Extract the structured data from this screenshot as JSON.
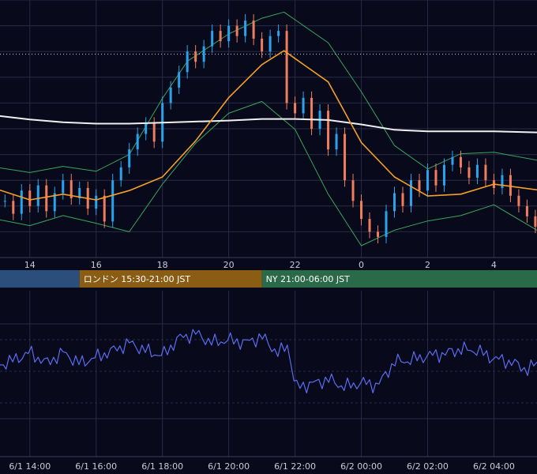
{
  "chart_data": [
    {
      "type": "candlestick",
      "series": [
        {
          "name": "candles",
          "color_up": "#2aa3ee",
          "color_down": "#f07e5e"
        },
        {
          "name": "long-ma",
          "color": "#f0f0f0"
        },
        {
          "name": "short-ma",
          "color": "#f5a02a"
        },
        {
          "name": "bollinger-bands",
          "color": "#3aa65a"
        }
      ],
      "x_ticks": [
        "14",
        "16",
        "18",
        "20",
        "22",
        "0",
        "2",
        "4"
      ],
      "x_range": [
        "6/1 13:06",
        "6/2 05:18"
      ],
      "ylim": [
        0,
        100
      ],
      "current_level": 67.6,
      "guide": {
        "price": 79,
        "time_start": "6/1 13:06",
        "time_end": "6/2 05:18"
      },
      "long_ma": [
        {
          "t": "6/1 13:00",
          "v": 55.1
        },
        {
          "t": "6/1 14:00",
          "v": 53.6
        },
        {
          "t": "6/1 15:00",
          "v": 52.5
        },
        {
          "t": "6/1 16:00",
          "v": 52.0
        },
        {
          "t": "6/1 17:00",
          "v": 52.0
        },
        {
          "t": "6/1 18:00",
          "v": 52.4
        },
        {
          "t": "6/1 19:00",
          "v": 52.8
        },
        {
          "t": "6/1 20:00",
          "v": 53.2
        },
        {
          "t": "6/1 21:00",
          "v": 53.8
        },
        {
          "t": "6/1 22:00",
          "v": 53.8
        },
        {
          "t": "6/1 23:00",
          "v": 53.4
        },
        {
          "t": "6/2 00:00",
          "v": 51.7
        },
        {
          "t": "6/2 01:00",
          "v": 49.6
        },
        {
          "t": "6/2 02:00",
          "v": 49.0
        },
        {
          "t": "6/2 03:00",
          "v": 49.0
        },
        {
          "t": "6/2 04:00",
          "v": 49.0
        },
        {
          "t": "6/2 05:18",
          "v": 48.6
        }
      ],
      "short_ma": [
        {
          "t": "6/1 13:00",
          "v": 26.6
        },
        {
          "t": "6/1 14:00",
          "v": 22.4
        },
        {
          "t": "6/1 15:00",
          "v": 24.6
        },
        {
          "t": "6/1 16:00",
          "v": 22.4
        },
        {
          "t": "6/1 17:00",
          "v": 26.0
        },
        {
          "t": "6/1 18:00",
          "v": 31.3
        },
        {
          "t": "6/1 19:00",
          "v": 45.3
        },
        {
          "t": "6/1 20:00",
          "v": 62.1
        },
        {
          "t": "6/1 21:00",
          "v": 74.9
        },
        {
          "t": "6/1 21:40",
          "v": 80.3
        },
        {
          "t": "6/1 23:00",
          "v": 68.2
        },
        {
          "t": "6/2 00:00",
          "v": 44.7
        },
        {
          "t": "6/2 01:00",
          "v": 31.3
        },
        {
          "t": "6/2 02:00",
          "v": 23.9
        },
        {
          "t": "6/2 03:00",
          "v": 24.6
        },
        {
          "t": "6/2 04:00",
          "v": 28.5
        },
        {
          "t": "6/2 05:18",
          "v": 26.3
        }
      ],
      "bollinger_upper": [
        {
          "t": "6/1 13:00",
          "v": 35.0
        },
        {
          "t": "6/1 14:00",
          "v": 33.0
        },
        {
          "t": "6/1 15:00",
          "v": 35.4
        },
        {
          "t": "6/1 16:00",
          "v": 33.5
        },
        {
          "t": "6/1 17:00",
          "v": 40.0
        },
        {
          "t": "6/1 18:00",
          "v": 61.8
        },
        {
          "t": "6/1 18:45",
          "v": 76.2
        },
        {
          "t": "6/1 20:00",
          "v": 86.8
        },
        {
          "t": "6/1 21:00",
          "v": 92.9
        },
        {
          "t": "6/1 21:40",
          "v": 95.3
        },
        {
          "t": "6/1 23:00",
          "v": 83.4
        },
        {
          "t": "6/2 00:00",
          "v": 64.4
        },
        {
          "t": "6/2 01:00",
          "v": 43.5
        },
        {
          "t": "6/2 02:00",
          "v": 34.4
        },
        {
          "t": "6/2 03:00",
          "v": 40.3
        },
        {
          "t": "6/2 04:00",
          "v": 40.9
        },
        {
          "t": "6/2 05:18",
          "v": 37.8
        }
      ],
      "bollinger_lower": [
        {
          "t": "6/1 13:00",
          "v": 14.9
        },
        {
          "t": "6/1 14:00",
          "v": 12.4
        },
        {
          "t": "6/1 15:00",
          "v": 16.3
        },
        {
          "t": "6/1 16:00",
          "v": 13.3
        },
        {
          "t": "6/1 17:00",
          "v": 10.0
        },
        {
          "t": "6/1 18:00",
          "v": 28.5
        },
        {
          "t": "6/1 19:00",
          "v": 44.4
        },
        {
          "t": "6/1 20:00",
          "v": 56.0
        },
        {
          "t": "6/1 21:00",
          "v": 60.6
        },
        {
          "t": "6/1 22:00",
          "v": 49.8
        },
        {
          "t": "6/1 23:00",
          "v": 24.6
        },
        {
          "t": "6/2 00:00",
          "v": 4.6
        },
        {
          "t": "6/2 01:00",
          "v": 10.6
        },
        {
          "t": "6/2 02:00",
          "v": 14.2
        },
        {
          "t": "6/2 03:00",
          "v": 16.3
        },
        {
          "t": "6/2 04:00",
          "v": 20.5
        },
        {
          "t": "6/2 05:18",
          "v": 10.6
        }
      ],
      "closes_15min": [
        {
          "t": "6/1 13:15",
          "v": 22
        },
        {
          "t": "6/1 13:30",
          "v": 17
        },
        {
          "t": "6/1 13:45",
          "v": 26
        },
        {
          "t": "6/1 14:00",
          "v": 20
        },
        {
          "t": "6/1 14:15",
          "v": 28
        },
        {
          "t": "6/1 14:30",
          "v": 18
        },
        {
          "t": "6/1 14:45",
          "v": 25
        },
        {
          "t": "6/1 15:00",
          "v": 30
        },
        {
          "t": "6/1 15:15",
          "v": 23
        },
        {
          "t": "6/1 15:30",
          "v": 27
        },
        {
          "t": "6/1 15:45",
          "v": 19
        },
        {
          "t": "6/1 16:00",
          "v": 24
        },
        {
          "t": "6/1 16:15",
          "v": 14
        },
        {
          "t": "6/1 16:30",
          "v": 30
        },
        {
          "t": "6/1 16:45",
          "v": 35
        },
        {
          "t": "6/1 17:00",
          "v": 42
        },
        {
          "t": "6/1 17:15",
          "v": 48
        },
        {
          "t": "6/1 17:30",
          "v": 52
        },
        {
          "t": "6/1 17:45",
          "v": 45
        },
        {
          "t": "6/1 18:00",
          "v": 60
        },
        {
          "t": "6/1 18:15",
          "v": 66
        },
        {
          "t": "6/1 18:30",
          "v": 72
        },
        {
          "t": "6/1 18:45",
          "v": 80
        },
        {
          "t": "6/1 19:00",
          "v": 76
        },
        {
          "t": "6/1 19:15",
          "v": 82
        },
        {
          "t": "6/1 19:30",
          "v": 88
        },
        {
          "t": "6/1 19:45",
          "v": 84
        },
        {
          "t": "6/1 20:00",
          "v": 90
        },
        {
          "t": "6/1 20:15",
          "v": 86
        },
        {
          "t": "6/1 20:30",
          "v": 92
        },
        {
          "t": "6/1 20:45",
          "v": 85
        },
        {
          "t": "6/1 21:00",
          "v": 80
        },
        {
          "t": "6/1 21:15",
          "v": 86
        },
        {
          "t": "6/1 21:30",
          "v": 88
        },
        {
          "t": "6/1 21:45",
          "v": 60
        },
        {
          "t": "6/1 22:00",
          "v": 56
        },
        {
          "t": "6/1 22:15",
          "v": 62
        },
        {
          "t": "6/1 22:30",
          "v": 50
        },
        {
          "t": "6/1 22:45",
          "v": 57
        },
        {
          "t": "6/1 23:00",
          "v": 42
        },
        {
          "t": "6/1 23:15",
          "v": 48
        },
        {
          "t": "6/1 23:30",
          "v": 30
        },
        {
          "t": "6/1 23:45",
          "v": 22
        },
        {
          "t": "6/2 00:00",
          "v": 15
        },
        {
          "t": "6/2 00:15",
          "v": 10
        },
        {
          "t": "6/2 00:30",
          "v": 8
        },
        {
          "t": "6/2 00:45",
          "v": 18
        },
        {
          "t": "6/2 01:00",
          "v": 25
        },
        {
          "t": "6/2 01:15",
          "v": 20
        },
        {
          "t": "6/2 01:30",
          "v": 30
        },
        {
          "t": "6/2 01:45",
          "v": 26
        },
        {
          "t": "6/2 02:00",
          "v": 34
        },
        {
          "t": "6/2 02:15",
          "v": 28
        },
        {
          "t": "6/2 02:30",
          "v": 36
        },
        {
          "t": "6/2 02:45",
          "v": 39
        },
        {
          "t": "6/2 03:00",
          "v": 35
        },
        {
          "t": "6/2 03:15",
          "v": 31
        },
        {
          "t": "6/2 03:30",
          "v": 36
        },
        {
          "t": "6/2 03:45",
          "v": 30
        },
        {
          "t": "6/2 04:00",
          "v": 27
        },
        {
          "t": "6/2 04:15",
          "v": 32
        },
        {
          "t": "6/2 04:30",
          "v": 24
        },
        {
          "t": "6/2 04:45",
          "v": 20
        },
        {
          "t": "6/2 05:00",
          "v": 16
        },
        {
          "t": "6/2 05:15",
          "v": 12
        }
      ]
    },
    {
      "type": "line",
      "series": [
        {
          "color": "#5c6cf0"
        }
      ],
      "ylim": [
        0,
        100
      ],
      "x_ticks": [
        "6/1 14:00",
        "6/1 16:00",
        "6/1 18:00",
        "6/1 20:00",
        "6/1 22:00",
        "6/2 00:00",
        "6/2 02:00",
        "6/2 04:00"
      ],
      "x_range": [
        "6/1 13:06",
        "6/2 05:18"
      ],
      "values": [
        {
          "t": "6/1 13:06",
          "v": 54
        },
        {
          "t": "6/1 13:30",
          "v": 57
        },
        {
          "t": "6/1 14:00",
          "v": 62
        },
        {
          "t": "6/1 14:30",
          "v": 55
        },
        {
          "t": "6/1 15:00",
          "v": 62
        },
        {
          "t": "6/1 15:30",
          "v": 55
        },
        {
          "t": "6/1 16:00",
          "v": 59
        },
        {
          "t": "6/1 16:30",
          "v": 63
        },
        {
          "t": "6/1 17:00",
          "v": 68
        },
        {
          "t": "6/1 17:30",
          "v": 63
        },
        {
          "t": "6/1 18:00",
          "v": 60
        },
        {
          "t": "6/1 18:30",
          "v": 71
        },
        {
          "t": "6/1 19:00",
          "v": 74
        },
        {
          "t": "6/1 19:30",
          "v": 68
        },
        {
          "t": "6/1 20:00",
          "v": 70
        },
        {
          "t": "6/1 20:30",
          "v": 68
        },
        {
          "t": "6/1 21:00",
          "v": 72
        },
        {
          "t": "6/1 21:30",
          "v": 61
        },
        {
          "t": "6/1 21:48",
          "v": 67
        },
        {
          "t": "6/1 22:00",
          "v": 40
        },
        {
          "t": "6/1 22:30",
          "v": 42
        },
        {
          "t": "6/1 23:00",
          "v": 45
        },
        {
          "t": "6/1 23:30",
          "v": 40
        },
        {
          "t": "6/2 00:00",
          "v": 43
        },
        {
          "t": "6/2 00:30",
          "v": 41
        },
        {
          "t": "6/2 01:00",
          "v": 56
        },
        {
          "t": "6/2 01:30",
          "v": 57
        },
        {
          "t": "6/2 02:00",
          "v": 60
        },
        {
          "t": "6/2 02:30",
          "v": 61
        },
        {
          "t": "6/2 03:00",
          "v": 64
        },
        {
          "t": "6/2 03:30",
          "v": 63
        },
        {
          "t": "6/2 04:00",
          "v": 58
        },
        {
          "t": "6/2 04:30",
          "v": 56
        },
        {
          "t": "6/2 05:00",
          "v": 51
        },
        {
          "t": "6/2 05:18",
          "v": 55
        }
      ]
    }
  ],
  "sessions": [
    {
      "label": "",
      "color": "#2a4f7c"
    },
    {
      "label": "ロンドン 15:30-21:00 JST",
      "color": "#8a5c14"
    },
    {
      "label": "NY 21:00-06:00 JST",
      "color": "#2a6a48"
    }
  ],
  "colors": {
    "background": "#080a1c",
    "grid": "#262a46",
    "axis_line": "#3a3e5a",
    "guide_line": "#c8cad6"
  }
}
